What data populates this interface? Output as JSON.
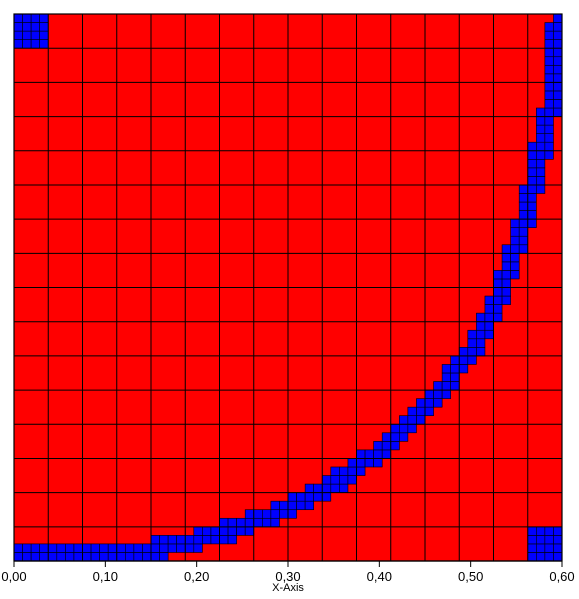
{
  "colors": {
    "fluid": "#ff0000",
    "interface": "#0000ff",
    "grid": "#000000",
    "background": "#ffffff"
  },
  "chart_data": {
    "type": "heatmap",
    "description": "Adaptive mesh refinement of a domain; blue refined cells mark a curved interface",
    "xlabel": "X-Axis",
    "ylabel": "",
    "title": "",
    "xlim": [
      0.0,
      0.6
    ],
    "ylim": [
      0.0,
      0.6
    ],
    "x_ticks": [
      {
        "value": 0.0,
        "label": "0,00"
      },
      {
        "value": 0.1,
        "label": "0,10"
      },
      {
        "value": 0.2,
        "label": "0,20"
      },
      {
        "value": 0.3,
        "label": "0,30"
      },
      {
        "value": 0.4,
        "label": "0,40"
      },
      {
        "value": 0.5,
        "label": "0,50"
      },
      {
        "value": 0.6,
        "label": "0,60"
      }
    ],
    "coarse_cells": {
      "nx": 16,
      "ny": 16
    },
    "interface_curve": [
      [
        0.0,
        0.005
      ],
      [
        0.1,
        0.007
      ],
      [
        0.15,
        0.012
      ],
      [
        0.2,
        0.022
      ],
      [
        0.25,
        0.038
      ],
      [
        0.3,
        0.058
      ],
      [
        0.35,
        0.085
      ],
      [
        0.4,
        0.12
      ],
      [
        0.45,
        0.165
      ],
      [
        0.5,
        0.23
      ],
      [
        0.53,
        0.29
      ],
      [
        0.555,
        0.36
      ],
      [
        0.575,
        0.44
      ],
      [
        0.59,
        0.51
      ],
      [
        0.598,
        0.6
      ]
    ],
    "refined_corners": [
      {
        "name": "top-left",
        "x": [
          0.0,
          0.0375
        ],
        "y": [
          0.5625,
          0.6
        ]
      },
      {
        "name": "bottom-right",
        "x": [
          0.5625,
          0.6
        ],
        "y": [
          0.0,
          0.0375
        ]
      }
    ]
  }
}
